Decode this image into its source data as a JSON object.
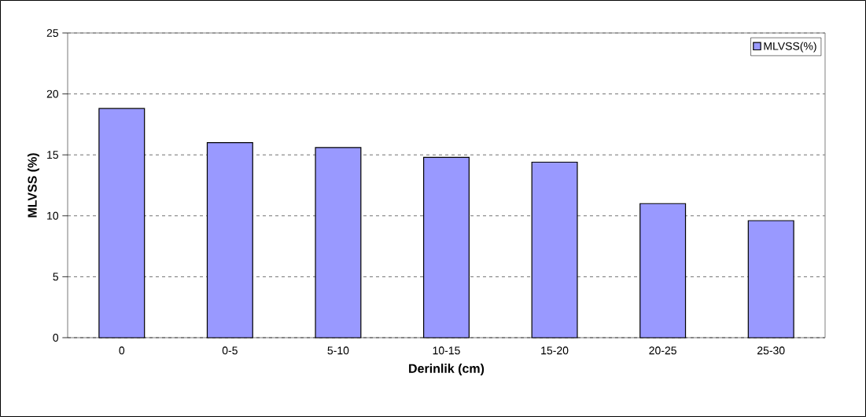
{
  "chart_data": {
    "type": "bar",
    "xlabel": "Derinlik (cm)",
    "ylabel": "MLVSS (%)",
    "categories": [
      "0",
      "0-5",
      "5-10",
      "10-15",
      "15-20",
      "20-25",
      "25-30"
    ],
    "series": [
      {
        "name": "MLVSS(%)",
        "color": "#9999ff",
        "values": [
          18.8,
          16.0,
          15.6,
          14.8,
          14.4,
          11.0,
          9.6
        ]
      }
    ],
    "ylim": [
      0,
      25
    ],
    "yticks": [
      0,
      5,
      10,
      15,
      20,
      25
    ],
    "grid": "y",
    "legend": "top right"
  }
}
